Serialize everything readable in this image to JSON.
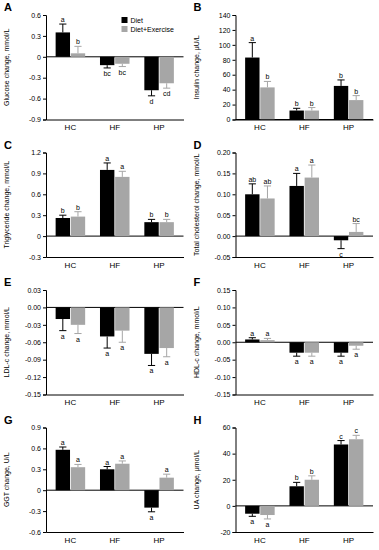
{
  "chart_data": [
    {
      "type": "bar",
      "title": "A",
      "y_label": "Glucose change, mmol/L",
      "categories": [
        "HC",
        "HF",
        "HP"
      ],
      "legend": "top-right",
      "ylim": [
        -0.9,
        0.6
      ],
      "yticks": [
        -0.9,
        -0.6,
        -0.3,
        0,
        0.3,
        0.6
      ],
      "series": [
        {
          "name": "Diet",
          "color": "#000000",
          "values": [
            0.35,
            -0.12,
            -0.48
          ],
          "errors": [
            0.12,
            0.04,
            0.08
          ],
          "annotations": [
            "a",
            "bc",
            "d"
          ]
        },
        {
          "name": "Diet+Exercise",
          "color": "#a6a6a6",
          "values": [
            0.05,
            -0.1,
            -0.38
          ],
          "errors": [
            0.1,
            0.04,
            0.07
          ],
          "annotations": [
            "b",
            "bc",
            "cd"
          ]
        }
      ]
    },
    {
      "type": "bar",
      "title": "B",
      "y_label": "Insulin change, μU/L",
      "categories": [
        "HC",
        "HF",
        "HP"
      ],
      "ylim": [
        0,
        140
      ],
      "yticks": [
        0,
        20,
        40,
        60,
        80,
        100,
        120,
        140
      ],
      "series": [
        {
          "color": "#000000",
          "values": [
            83,
            12,
            45
          ],
          "errors": [
            20,
            3,
            8
          ],
          "annotations": [
            "a",
            "b",
            "b"
          ]
        },
        {
          "color": "#a6a6a6",
          "values": [
            43,
            12,
            26
          ],
          "errors": [
            8,
            4,
            6
          ],
          "annotations": [
            "b",
            "b",
            "b"
          ]
        }
      ]
    },
    {
      "type": "bar",
      "title": "C",
      "y_label": "Triglyceride change, mmol/L",
      "categories": [
        "HC",
        "HF",
        "HP"
      ],
      "ylim": [
        -0.3,
        1.2
      ],
      "yticks": [
        -0.3,
        0,
        0.3,
        0.6,
        0.9,
        1.2
      ],
      "series": [
        {
          "color": "#000000",
          "values": [
            0.26,
            0.95,
            0.2
          ],
          "errors": [
            0.04,
            0.1,
            0.04
          ],
          "annotations": [
            "b",
            "a",
            "b"
          ]
        },
        {
          "color": "#a6a6a6",
          "values": [
            0.28,
            0.85,
            0.2
          ],
          "errors": [
            0.07,
            0.08,
            0.04
          ],
          "annotations": [
            "b",
            "a",
            "b"
          ]
        }
      ]
    },
    {
      "type": "bar",
      "title": "D",
      "y_label": "Total cholesterol change, mmol/L",
      "categories": [
        "HC",
        "HF",
        "HP"
      ],
      "ylim": [
        -0.05,
        0.2
      ],
      "yticks": [
        -0.05,
        {
          "value": 0,
          "label": "0.00"
        },
        0.05,
        {
          "value": 0.1,
          "label": "0.10"
        },
        0.15,
        {
          "value": 0.2,
          "label": "0.20"
        }
      ],
      "series": [
        {
          "color": "#000000",
          "values": [
            0.1,
            0.12,
            -0.01
          ],
          "errors": [
            0.025,
            0.03,
            0.02
          ],
          "annotations": [
            "ab",
            "a",
            "c"
          ]
        },
        {
          "color": "#a6a6a6",
          "values": [
            0.09,
            0.14,
            0.01
          ],
          "errors": [
            0.03,
            0.03,
            0.02
          ],
          "annotations": [
            "ab",
            "a",
            "bc"
          ]
        }
      ]
    },
    {
      "type": "bar",
      "title": "E",
      "y_label": "LDL-c change, mmol/L",
      "categories": [
        "HC",
        "HF",
        "HP"
      ],
      "ylim": [
        -0.15,
        0.03
      ],
      "yticks": [
        -0.15,
        -0.12,
        -0.09,
        -0.06,
        -0.03,
        {
          "value": 0,
          "label": "0.00"
        },
        0.03
      ],
      "series": [
        {
          "color": "#000000",
          "values": [
            -0.02,
            -0.05,
            -0.08
          ],
          "errors": [
            0.02,
            0.02,
            0.02
          ],
          "annotations": [
            "a",
            "a",
            "a"
          ]
        },
        {
          "color": "#a6a6a6",
          "values": [
            -0.03,
            -0.04,
            -0.07
          ],
          "errors": [
            0.015,
            0.02,
            0.015
          ],
          "annotations": [
            "a",
            "a",
            "a"
          ]
        }
      ]
    },
    {
      "type": "bar",
      "title": "F",
      "y_label": "HDL-c change, mmol/L",
      "categories": [
        "HC",
        "HF",
        "HP"
      ],
      "ylim": [
        -0.15,
        0.15
      ],
      "yticks": [
        -0.15,
        {
          "value": -0.1,
          "label": "-0.10"
        },
        -0.05,
        {
          "value": 0,
          "label": "0.00"
        },
        0.05,
        {
          "value": 0.1,
          "label": "0.10"
        },
        0.15
      ],
      "series": [
        {
          "color": "#000000",
          "values": [
            0.008,
            -0.03,
            -0.03
          ],
          "errors": [
            0.005,
            0.01,
            0.01
          ],
          "annotations": [
            "a",
            "a",
            "a"
          ]
        },
        {
          "color": "#a6a6a6",
          "values": [
            0.006,
            -0.03,
            -0.01
          ],
          "errors": [
            0.005,
            0.01,
            0.01
          ],
          "annotations": [
            "a",
            "a",
            "a"
          ]
        }
      ]
    },
    {
      "type": "bar",
      "title": "G",
      "y_label": "GGT change, U/L",
      "categories": [
        "HC",
        "HF",
        "HP"
      ],
      "ylim": [
        -0.6,
        0.9
      ],
      "yticks": [
        -0.6,
        -0.3,
        0,
        0.3,
        0.6,
        0.9
      ],
      "series": [
        {
          "color": "#000000",
          "values": [
            0.58,
            0.3,
            -0.25
          ],
          "errors": [
            0.04,
            0.04,
            0.06
          ],
          "annotations": [
            "a",
            "a",
            "a"
          ]
        },
        {
          "color": "#a6a6a6",
          "values": [
            0.33,
            0.38,
            0.18
          ],
          "errors": [
            0.04,
            0.04,
            0.05
          ],
          "annotations": [
            "a",
            "a",
            "a"
          ]
        }
      ]
    },
    {
      "type": "bar",
      "title": "H",
      "y_label": "UA change, μmol/L",
      "categories": [
        "HC",
        "HF",
        "HP"
      ],
      "ylim": [
        -20,
        60
      ],
      "yticks": [
        -20,
        0,
        20,
        40,
        60
      ],
      "series": [
        {
          "color": "#000000",
          "values": [
            -6,
            15,
            47
          ],
          "errors": [
            2,
            3,
            3
          ],
          "annotations": [
            "a",
            "b",
            "c"
          ]
        },
        {
          "color": "#a6a6a6",
          "values": [
            -7,
            20,
            51
          ],
          "errors": [
            3,
            3,
            3
          ],
          "annotations": [
            "a",
            "b",
            "c"
          ]
        }
      ]
    }
  ]
}
